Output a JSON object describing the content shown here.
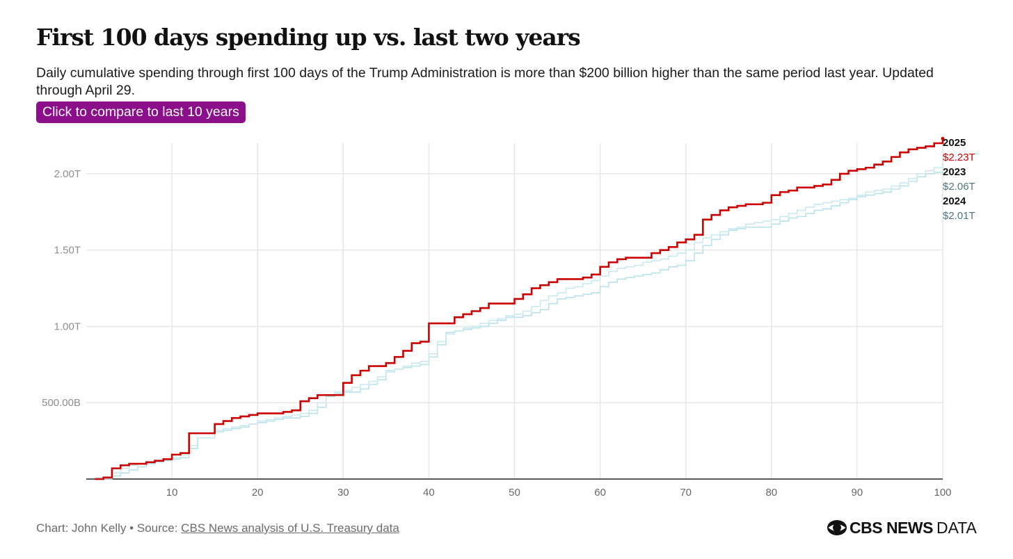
{
  "header": {
    "title": "First 100 days spending up vs. last two years",
    "subtitle": "Daily cumulative spending through first 100 days of the Trump Administration is more than $200 billion higher than the same period last year. Updated through April 29.",
    "compare_button_label": "Click to compare to last 10 years"
  },
  "footer": {
    "chart_credit": "Chart: John Kelly • Source: ",
    "source_link_text": "CBS News analysis of U.S. Treasury data",
    "logo_brand": "CBS NEWS",
    "logo_suffix": "DATA"
  },
  "colors": {
    "2025": "#cc0000",
    "2024": "#b8e2ea",
    "2023": "#c9e9ef",
    "value_label_past": "#4f7480",
    "grid": "#e6e6e6",
    "tick_label": "#8c8c8c"
  },
  "chart_data": {
    "type": "line",
    "step": true,
    "title": "First 100 days spending up vs. last two years",
    "xlabel": "",
    "ylabel": "",
    "xlim": [
      0,
      100
    ],
    "ylim": [
      0,
      2.2
    ],
    "x_ticks": [
      10,
      20,
      30,
      40,
      50,
      60,
      70,
      80,
      90,
      100
    ],
    "x_tick_labels": [
      "10",
      "20",
      "30",
      "40",
      "50",
      "60",
      "70",
      "80",
      "90",
      "100"
    ],
    "y_ticks": [
      0.5,
      1.0,
      1.5,
      2.0
    ],
    "y_tick_labels": [
      "500.00B",
      "1.00T",
      "1.50T",
      "2.00T"
    ],
    "y_unit": "trillions USD",
    "grid": true,
    "series": [
      {
        "name": "2023",
        "end_label": "$2.06T",
        "x": [
          1,
          3,
          4,
          5,
          6,
          7,
          8,
          9,
          10,
          11,
          12,
          13,
          15,
          16,
          17,
          18,
          19,
          20,
          21,
          22,
          23,
          24,
          25,
          26,
          27,
          28,
          29,
          30,
          31,
          32,
          33,
          34,
          35,
          36,
          37,
          38,
          39,
          40,
          41,
          42,
          43,
          44,
          45,
          46,
          47,
          48,
          49,
          50,
          51,
          52,
          53,
          54,
          55,
          56,
          57,
          58,
          59,
          60,
          61,
          62,
          63,
          64,
          65,
          66,
          67,
          68,
          69,
          70,
          71,
          72,
          73,
          74,
          75,
          76,
          77,
          78,
          79,
          80,
          81,
          82,
          83,
          84,
          85,
          86,
          87,
          88,
          89,
          90,
          91,
          92,
          93,
          94,
          95,
          96,
          97,
          98,
          99,
          100
        ],
        "values": [
          0.01,
          0.04,
          0.07,
          0.09,
          0.1,
          0.11,
          0.12,
          0.13,
          0.14,
          0.16,
          0.22,
          0.27,
          0.32,
          0.33,
          0.34,
          0.35,
          0.36,
          0.38,
          0.39,
          0.4,
          0.41,
          0.42,
          0.43,
          0.45,
          0.5,
          0.55,
          0.57,
          0.58,
          0.6,
          0.62,
          0.64,
          0.67,
          0.7,
          0.72,
          0.74,
          0.76,
          0.77,
          0.82,
          0.9,
          0.95,
          0.97,
          0.99,
          1.0,
          1.02,
          1.04,
          1.05,
          1.07,
          1.08,
          1.1,
          1.13,
          1.17,
          1.2,
          1.22,
          1.25,
          1.26,
          1.28,
          1.3,
          1.33,
          1.36,
          1.38,
          1.39,
          1.4,
          1.42,
          1.43,
          1.44,
          1.46,
          1.48,
          1.5,
          1.55,
          1.58,
          1.6,
          1.62,
          1.64,
          1.65,
          1.67,
          1.68,
          1.69,
          1.7,
          1.72,
          1.74,
          1.76,
          1.78,
          1.8,
          1.81,
          1.82,
          1.83,
          1.84,
          1.86,
          1.88,
          1.89,
          1.9,
          1.92,
          1.94,
          1.97,
          2.0,
          2.02,
          2.04,
          2.06
        ]
      },
      {
        "name": "2024",
        "end_label": "$2.01T",
        "x": [
          1,
          3,
          4,
          5,
          6,
          7,
          8,
          9,
          10,
          11,
          12,
          13,
          15,
          16,
          17,
          18,
          19,
          20,
          21,
          22,
          23,
          24,
          25,
          26,
          27,
          28,
          29,
          30,
          31,
          32,
          33,
          34,
          35,
          36,
          37,
          38,
          39,
          40,
          41,
          42,
          43,
          44,
          45,
          46,
          47,
          48,
          49,
          50,
          51,
          52,
          53,
          54,
          55,
          56,
          57,
          58,
          59,
          60,
          61,
          62,
          63,
          64,
          65,
          66,
          67,
          68,
          69,
          70,
          71,
          72,
          73,
          74,
          75,
          76,
          77,
          78,
          79,
          80,
          81,
          82,
          83,
          84,
          85,
          86,
          87,
          88,
          89,
          90,
          91,
          92,
          93,
          94,
          95,
          96,
          97,
          98,
          99,
          100
        ],
        "values": [
          0.0,
          0.02,
          0.04,
          0.06,
          0.08,
          0.1,
          0.11,
          0.12,
          0.13,
          0.14,
          0.2,
          0.27,
          0.31,
          0.32,
          0.33,
          0.34,
          0.36,
          0.37,
          0.38,
          0.39,
          0.4,
          0.4,
          0.41,
          0.43,
          0.47,
          0.54,
          0.56,
          0.57,
          0.57,
          0.59,
          0.62,
          0.65,
          0.71,
          0.72,
          0.73,
          0.74,
          0.75,
          0.8,
          0.88,
          0.96,
          0.97,
          0.98,
          0.99,
          1.0,
          1.02,
          1.04,
          1.06,
          1.06,
          1.07,
          1.09,
          1.11,
          1.15,
          1.18,
          1.19,
          1.2,
          1.21,
          1.22,
          1.26,
          1.29,
          1.31,
          1.32,
          1.33,
          1.34,
          1.35,
          1.37,
          1.39,
          1.4,
          1.43,
          1.48,
          1.53,
          1.57,
          1.6,
          1.63,
          1.64,
          1.65,
          1.65,
          1.65,
          1.67,
          1.69,
          1.71,
          1.72,
          1.74,
          1.76,
          1.77,
          1.79,
          1.81,
          1.83,
          1.85,
          1.86,
          1.87,
          1.88,
          1.9,
          1.92,
          1.95,
          1.98,
          2.0,
          2.01,
          2.01
        ]
      },
      {
        "name": "2025",
        "end_label": "$2.23T",
        "x": [
          1,
          2,
          3,
          4,
          5,
          7,
          8,
          9,
          10,
          11,
          12,
          15,
          16,
          17,
          18,
          19,
          20,
          23,
          24,
          25,
          26,
          27,
          30,
          31,
          32,
          33,
          34,
          35,
          36,
          37,
          38,
          39,
          40,
          43,
          44,
          45,
          46,
          47,
          50,
          51,
          52,
          53,
          54,
          55,
          58,
          59,
          60,
          61,
          62,
          63,
          64,
          65,
          66,
          67,
          68,
          69,
          70,
          71,
          72,
          73,
          74,
          75,
          76,
          77,
          78,
          79,
          80,
          81,
          82,
          83,
          84,
          85,
          86,
          87,
          88,
          89,
          90,
          91,
          92,
          93,
          94,
          95,
          96,
          97,
          98,
          99,
          100
        ],
        "values": [
          0.0,
          0.01,
          0.07,
          0.09,
          0.1,
          0.11,
          0.12,
          0.13,
          0.16,
          0.17,
          0.3,
          0.36,
          0.38,
          0.4,
          0.41,
          0.42,
          0.43,
          0.44,
          0.45,
          0.51,
          0.53,
          0.55,
          0.63,
          0.68,
          0.71,
          0.74,
          0.74,
          0.76,
          0.8,
          0.84,
          0.89,
          0.9,
          1.02,
          1.06,
          1.08,
          1.1,
          1.12,
          1.15,
          1.18,
          1.21,
          1.25,
          1.27,
          1.29,
          1.31,
          1.32,
          1.34,
          1.39,
          1.42,
          1.44,
          1.45,
          1.45,
          1.45,
          1.48,
          1.5,
          1.52,
          1.55,
          1.57,
          1.6,
          1.7,
          1.73,
          1.76,
          1.78,
          1.79,
          1.8,
          1.8,
          1.81,
          1.86,
          1.88,
          1.89,
          1.91,
          1.91,
          1.92,
          1.93,
          1.96,
          2.0,
          2.02,
          2.03,
          2.04,
          2.06,
          2.08,
          2.11,
          2.14,
          2.16,
          2.17,
          2.18,
          2.2,
          2.23
        ]
      }
    ],
    "end_labels": [
      {
        "year": "2025",
        "value": "$2.23T"
      },
      {
        "year": "2023",
        "value": "$2.06T"
      },
      {
        "year": "2024",
        "value": "$2.01T"
      }
    ]
  }
}
